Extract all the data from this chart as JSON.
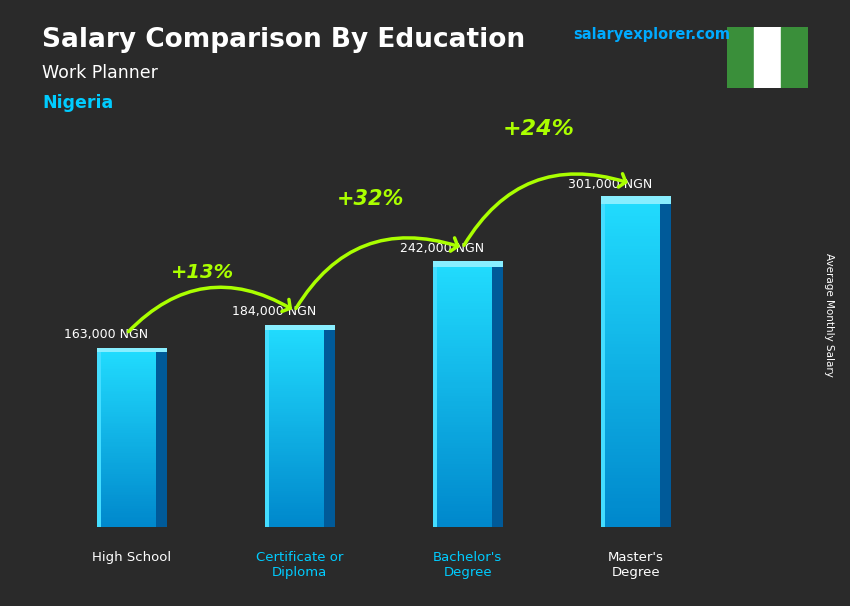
{
  "title_main": "Salary Comparison By Education",
  "title_sub": "Work Planner",
  "title_country": "Nigeria",
  "watermark": "salaryexplorer.com",
  "ylabel_rotated": "Average Monthly Salary",
  "categories": [
    "High School",
    "Certificate or\nDiploma",
    "Bachelor's\nDegree",
    "Master's\nDegree"
  ],
  "values": [
    163000,
    184000,
    242000,
    301000
  ],
  "value_labels": [
    "163,000 NGN",
    "184,000 NGN",
    "242,000 NGN",
    "301,000 NGN"
  ],
  "pct_labels": [
    "+13%",
    "+32%",
    "+24%"
  ],
  "pct_from": [
    0,
    1,
    2
  ],
  "pct_to": [
    1,
    2,
    3
  ],
  "bar_color_light": "#00d4ff",
  "bar_color_dark": "#0077bb",
  "bar_side_color": "#005599",
  "bar_top_color": "#aaeeff",
  "background_color": "#2a2a2a",
  "title_color": "#ffffff",
  "subtitle_color": "#ffffff",
  "country_color": "#00ccff",
  "value_label_color": "#ffffff",
  "pct_color": "#aaff00",
  "arrow_color": "#aaff00",
  "watermark_color": "#00aaff",
  "flag_green": "#3a8f3a",
  "flag_white": "#ffffff",
  "ylim": [
    0,
    390000
  ],
  "bar_width": 0.35,
  "x_positions": [
    0,
    1,
    2,
    3
  ],
  "xlim": [
    -0.5,
    3.8
  ],
  "figsize": [
    8.5,
    6.06
  ],
  "dpi": 100
}
